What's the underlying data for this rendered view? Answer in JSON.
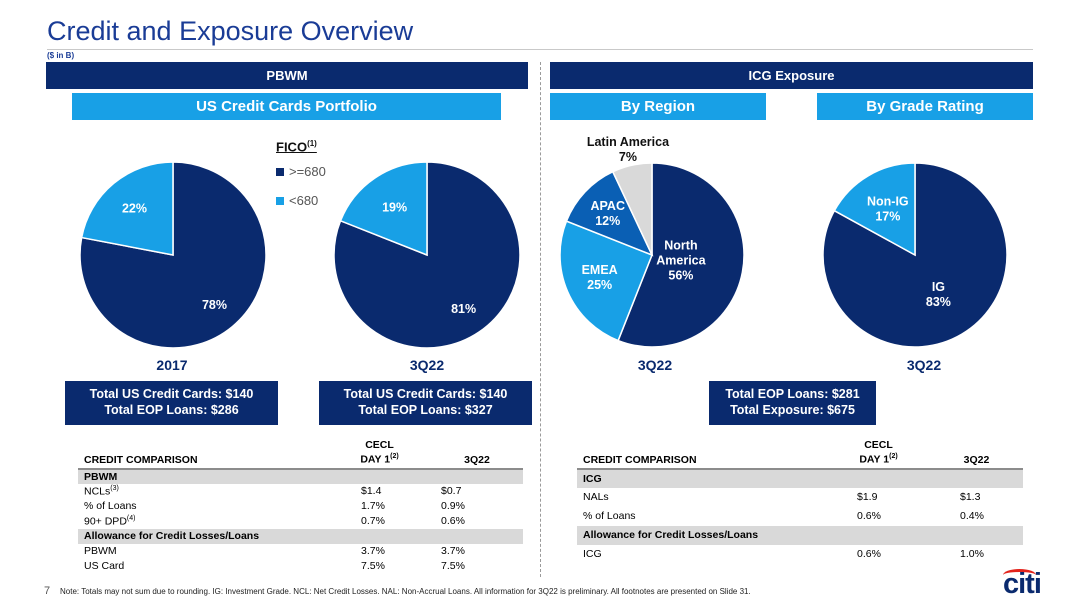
{
  "page": {
    "title": "Credit and Exposure Overview",
    "units": "($ in B)",
    "slide_number": "7",
    "footnote": "Note:  Totals may not sum due to rounding. IG: Investment Grade. NCL: Net Credit Losses. NAL: Non-Accrual Loans. All information for 3Q22 is preliminary. All footnotes are presented on Slide 31.",
    "logo_text": "citi"
  },
  "colors": {
    "dark_navy": "#0a2a6e",
    "mid_blue": "#0a5fb4",
    "light_blue": "#18a0e6",
    "grey": "#d9d9d9",
    "logo_red": "#e3231b"
  },
  "left": {
    "header": "PBWM",
    "subheader": "US Credit Cards Portfolio",
    "legend": {
      "title": "FICO",
      "title_sup": "(1)",
      "items": [
        ">=680",
        "<680"
      ]
    },
    "box1": {
      "line1": "Total US Credit Cards: $140",
      "line2": "Total EOP Loans: $286"
    },
    "box2": {
      "line1": "Total US Credit Cards: $140",
      "line2": "Total EOP Loans: $327"
    },
    "table": {
      "col1": "CREDIT COMPARISON",
      "col2a": "CECL",
      "col2b": "DAY 1",
      "col2_sup": "(2)",
      "col3": "3Q22",
      "sec1": "PBWM",
      "r1": {
        "label": "NCLs",
        "sup": "(3)",
        "v1": "$1.4",
        "v2": "$0.7"
      },
      "r2": {
        "label": "% of Loans",
        "v1": "1.7%",
        "v2": "0.9%"
      },
      "r3": {
        "label": "90+ DPD",
        "sup": "(4)",
        "v1": "0.7%",
        "v2": "0.6%"
      },
      "sec2": "Allowance for Credit Losses/Loans",
      "r4": {
        "label": "PBWM",
        "v1": "3.7%",
        "v2": "3.7%"
      },
      "r5": {
        "label": "US Card",
        "v1": "7.5%",
        "v2": "7.5%"
      }
    }
  },
  "right": {
    "header": "ICG Exposure",
    "subheader1": "By Region",
    "subheader2": "By Grade Rating",
    "box": {
      "line1": "Total EOP Loans: $281",
      "line2": "Total Exposure: $675"
    },
    "table": {
      "col1": "CREDIT COMPARISON",
      "col2a": "CECL",
      "col2b": "DAY 1",
      "col2_sup": "(2)",
      "col3": "3Q22",
      "sec1": "ICG",
      "r1": {
        "label": "NALs",
        "v1": "$1.9",
        "v2": "$1.3"
      },
      "r2": {
        "label": "% of Loans",
        "v1": "0.6%",
        "v2": "0.4%"
      },
      "sec2": "Allowance for Credit Losses/Loans",
      "r3": {
        "label": "ICG",
        "v1": "0.6%",
        "v2": "1.0%"
      }
    }
  },
  "chart_data": [
    {
      "type": "pie",
      "period": "2017",
      "slices": [
        {
          "name": ">=680",
          "value": 78,
          "label": "78%",
          "color": "#0a2a6e"
        },
        {
          "name": "<680",
          "value": 22,
          "label": "22%",
          "color": "#18a0e6"
        }
      ]
    },
    {
      "type": "pie",
      "period": "3Q22",
      "slices": [
        {
          "name": ">=680",
          "value": 81,
          "label": "81%",
          "color": "#0a2a6e"
        },
        {
          "name": "<680",
          "value": 19,
          "label": "19%",
          "color": "#18a0e6"
        }
      ]
    },
    {
      "type": "pie",
      "period": "3Q22",
      "slices": [
        {
          "name": "North America",
          "value": 56,
          "label": [
            "North",
            "America",
            "56%"
          ],
          "color": "#0a2a6e"
        },
        {
          "name": "EMEA",
          "value": 25,
          "label": [
            "EMEA",
            "25%"
          ],
          "color": "#18a0e6"
        },
        {
          "name": "APAC",
          "value": 12,
          "label": [
            "APAC",
            "12%"
          ],
          "color": "#0a5fb4"
        },
        {
          "name": "Latin America",
          "value": 7,
          "label": [
            "Latin America",
            "7%"
          ],
          "color": "#d9d9d9",
          "label_outside": true
        }
      ]
    },
    {
      "type": "pie",
      "period": "3Q22",
      "slices": [
        {
          "name": "IG",
          "value": 83,
          "label": [
            "IG",
            "83%"
          ],
          "color": "#0a2a6e"
        },
        {
          "name": "Non-IG",
          "value": 17,
          "label": [
            "Non-IG",
            "17%"
          ],
          "color": "#18a0e6"
        }
      ]
    }
  ]
}
